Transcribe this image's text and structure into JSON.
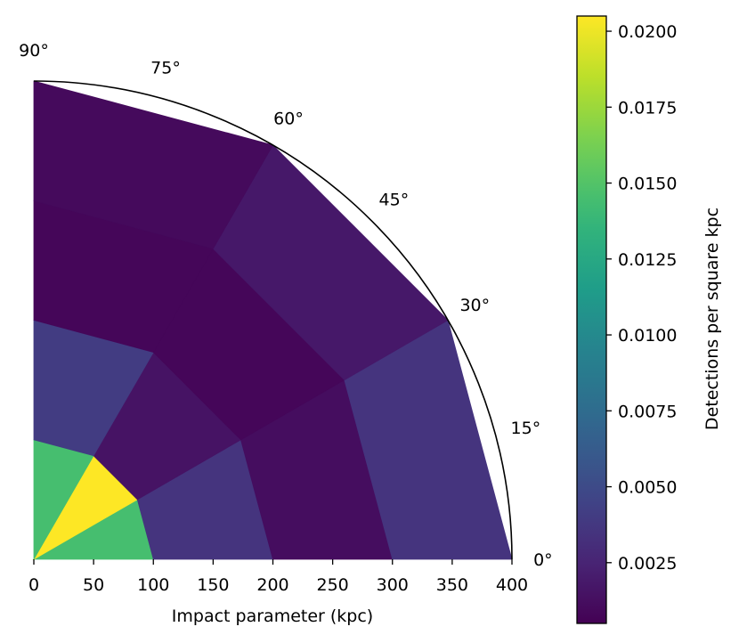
{
  "chart_data": {
    "type": "heatmap",
    "coordinate_system": "polar-quadrant",
    "xlabel": "Impact parameter (kpc)",
    "x_ticks": [
      "0",
      "50",
      "100",
      "150",
      "200",
      "250",
      "300",
      "350",
      "400"
    ],
    "xlim": [
      0,
      400
    ],
    "angle_ticks": [
      "0°",
      "15°",
      "30°",
      "45°",
      "60°",
      "75°",
      "90°"
    ],
    "angle_tick_values": [
      0,
      15,
      30,
      45,
      60,
      75,
      90
    ],
    "radial_bins": [
      0,
      100,
      200,
      300,
      400
    ],
    "angular_bins": [
      0,
      30,
      60,
      90
    ],
    "cells": [
      {
        "r": [
          0,
          100
        ],
        "theta": [
          0,
          30
        ],
        "value": 0.0145
      },
      {
        "r": [
          0,
          100
        ],
        "theta": [
          30,
          60
        ],
        "value": 0.0205
      },
      {
        "r": [
          0,
          100
        ],
        "theta": [
          60,
          90
        ],
        "value": 0.0145
      },
      {
        "r": [
          100,
          200
        ],
        "theta": [
          0,
          30
        ],
        "value": 0.0035
      },
      {
        "r": [
          100,
          200
        ],
        "theta": [
          30,
          60
        ],
        "value": 0.0015
      },
      {
        "r": [
          100,
          200
        ],
        "theta": [
          60,
          90
        ],
        "value": 0.004
      },
      {
        "r": [
          200,
          300
        ],
        "theta": [
          0,
          30
        ],
        "value": 0.0012
      },
      {
        "r": [
          200,
          300
        ],
        "theta": [
          30,
          60
        ],
        "value": 0.0008
      },
      {
        "r": [
          200,
          300
        ],
        "theta": [
          60,
          90
        ],
        "value": 0.0008
      },
      {
        "r": [
          300,
          400
        ],
        "theta": [
          0,
          30
        ],
        "value": 0.0035
      },
      {
        "r": [
          300,
          400
        ],
        "theta": [
          30,
          60
        ],
        "value": 0.0018
      },
      {
        "r": [
          300,
          400
        ],
        "theta": [
          60,
          90
        ],
        "value": 0.001
      }
    ],
    "colorbar": {
      "label": "Detections per square kpc",
      "colormap": "viridis",
      "vmin": 0.0005,
      "vmax": 0.0205,
      "ticks": [
        "0.0025",
        "0.0050",
        "0.0075",
        "0.0100",
        "0.0125",
        "0.0150",
        "0.0175",
        "0.0200"
      ],
      "tick_values": [
        0.0025,
        0.005,
        0.0075,
        0.01,
        0.0125,
        0.015,
        0.0175,
        0.02
      ]
    }
  }
}
